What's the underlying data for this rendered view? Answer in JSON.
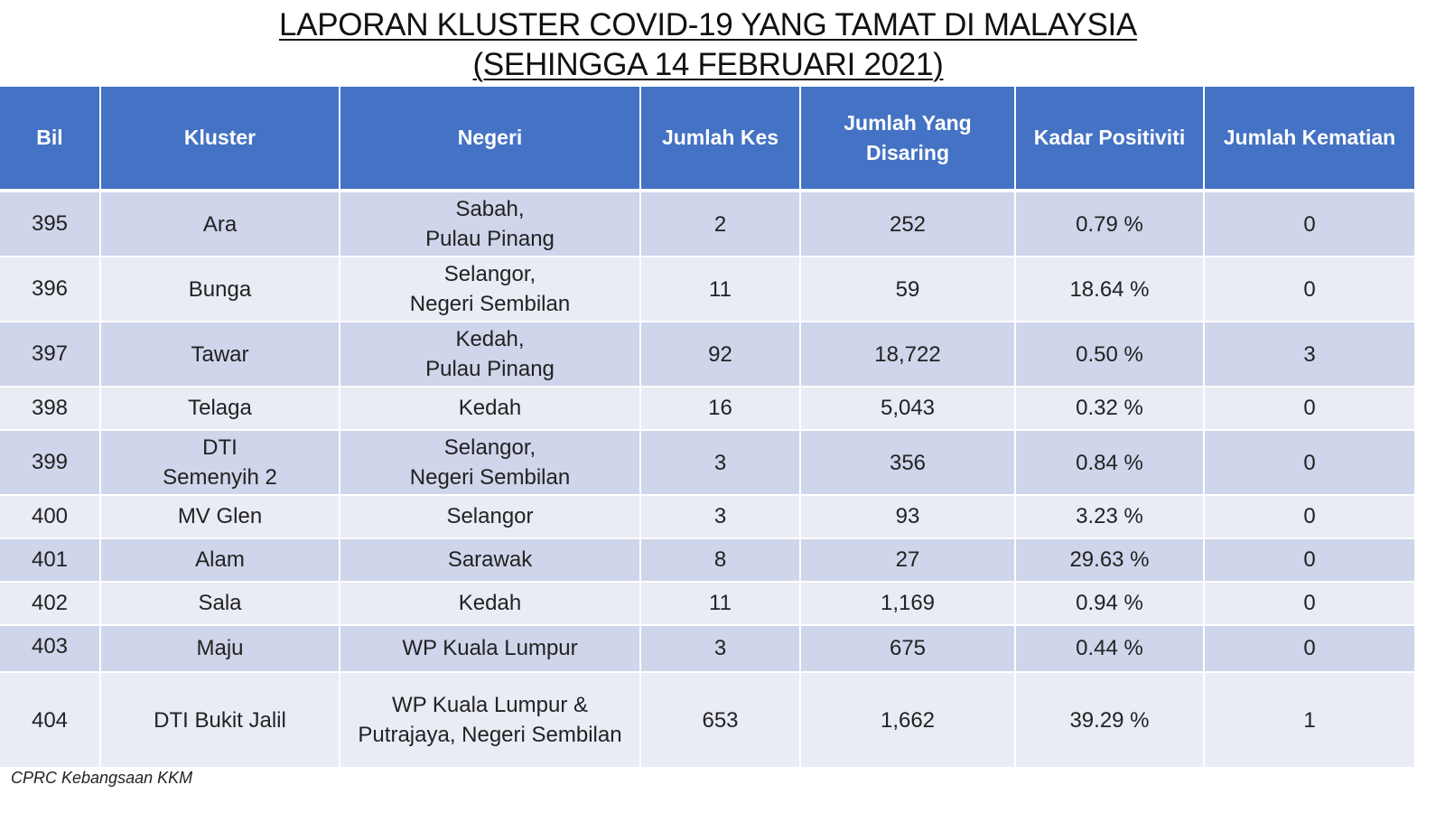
{
  "title": {
    "line1": "LAPORAN KLUSTER COVID-19 YANG TAMAT DI MALAYSIA",
    "line2": "(SEHINGGA 14 FEBRUARI 2021)"
  },
  "table": {
    "headers": [
      "Bil",
      "Kluster",
      "Negeri",
      "Jumlah Kes",
      "Jumlah Yang Disaring",
      "Kadar Positiviti",
      "Jumlah Kematian"
    ],
    "rows": [
      {
        "bil": "395",
        "kluster": "Ara",
        "negeri": [
          "Sabah,",
          "Pulau Pinang"
        ],
        "kes": "2",
        "disaring": "252",
        "positiviti": "0.79 %",
        "kematian": "0"
      },
      {
        "bil": "396",
        "kluster": "Bunga",
        "negeri": [
          "Selangor,",
          "Negeri Sembilan"
        ],
        "kes": "11",
        "disaring": "59",
        "positiviti": "18.64 %",
        "kematian": "0"
      },
      {
        "bil": "397",
        "kluster": "Tawar",
        "negeri": [
          "Kedah,",
          "Pulau Pinang"
        ],
        "kes": "92",
        "disaring": "18,722",
        "positiviti": "0.50 %",
        "kematian": "3"
      },
      {
        "bil": "398",
        "kluster": "Telaga",
        "negeri": [
          "Kedah"
        ],
        "kes": "16",
        "disaring": "5,043",
        "positiviti": "0.32 %",
        "kematian": "0"
      },
      {
        "bil": "399",
        "kluster": "DTI\nSemenyih 2",
        "negeri": [
          "Selangor,",
          "Negeri Sembilan"
        ],
        "kes": "3",
        "disaring": "356",
        "positiviti": "0.84 %",
        "kematian": "0"
      },
      {
        "bil": "400",
        "kluster": "MV Glen",
        "negeri": [
          "Selangor"
        ],
        "kes": "3",
        "disaring": "93",
        "positiviti": "3.23 %",
        "kematian": "0"
      },
      {
        "bil": "401",
        "kluster": "Alam",
        "negeri": [
          "Sarawak"
        ],
        "kes": "8",
        "disaring": "27",
        "positiviti": "29.63 %",
        "kematian": "0"
      },
      {
        "bil": "402",
        "kluster": "Sala",
        "negeri": [
          "Kedah"
        ],
        "kes": "11",
        "disaring": "1,169",
        "positiviti": "0.94 %",
        "kematian": "0"
      },
      {
        "bil": "403",
        "kluster": "Maju",
        "negeri": [
          "WP Kuala Lumpur"
        ],
        "kes": "3",
        "disaring": "675",
        "positiviti": "0.44 %",
        "kematian": "0"
      },
      {
        "bil": "404",
        "kluster": "DTI Bukit Jalil",
        "negeri": [
          "WP Kuala Lumpur &",
          "Putrajaya, Negeri Sembilan"
        ],
        "kes": "653",
        "disaring": "1,662",
        "positiviti": "39.29 %",
        "kematian": "1"
      }
    ]
  },
  "footer": {
    "source": "CPRC Kebangsaan KKM"
  },
  "colors": {
    "header_bg": "#4472c4",
    "row_odd": "#cfd5ea",
    "row_even": "#e9ebf5"
  }
}
